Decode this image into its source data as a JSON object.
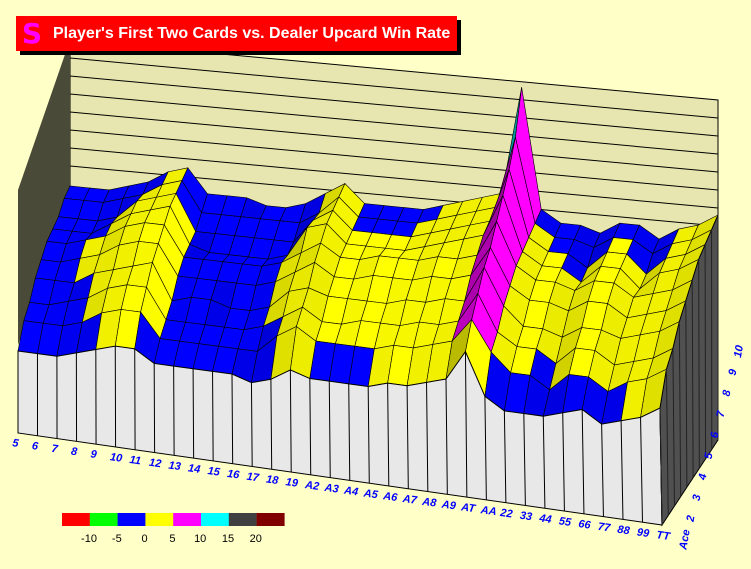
{
  "title": "Player's First Two Cards vs. Dealer Upcard Win Rate",
  "chart_data": {
    "type": "surface3d",
    "title": "Player's First Two Cards vs. Dealer Upcard Win Rate",
    "x_categories": [
      "5",
      "6",
      "7",
      "8",
      "9",
      "10",
      "11",
      "12",
      "13",
      "14",
      "15",
      "16",
      "17",
      "18",
      "19",
      "A2",
      "A3",
      "A4",
      "A5",
      "A6",
      "A7",
      "A8",
      "A9",
      "AT",
      "AA",
      "22",
      "33",
      "44",
      "55",
      "66",
      "77",
      "88",
      "99",
      "TT"
    ],
    "y_categories": [
      "Ace",
      "2",
      "3",
      "4",
      "5",
      "6",
      "7",
      "8",
      "9",
      "10"
    ],
    "z_values": [
      [
        -4,
        -2,
        -2,
        -1,
        -1,
        -1,
        -2,
        -3,
        -3,
        -4
      ],
      [
        -4,
        -2,
        -2,
        -1,
        -1,
        -1,
        -2,
        -3,
        -3,
        -4
      ],
      [
        -4,
        -2,
        -1,
        -1,
        0,
        0,
        -2,
        -3,
        -3,
        -4
      ],
      [
        -3,
        -1,
        0,
        1,
        1,
        1,
        0,
        -2,
        -2,
        -3
      ],
      [
        -2,
        1,
        2,
        2,
        3,
        3,
        2,
        1,
        -1,
        -2
      ],
      [
        -1,
        2,
        3,
        3,
        4,
        4,
        3,
        2,
        1,
        0
      ],
      [
        -1,
        2,
        3,
        4,
        4,
        4,
        4,
        3,
        2,
        1
      ],
      [
        -3,
        -2,
        -2,
        -2,
        -1,
        -1,
        -2,
        -3,
        -3,
        -3
      ],
      [
        -3,
        -2,
        -2,
        -1,
        -1,
        -1,
        -3,
        -3,
        -3,
        -3
      ],
      [
        -3,
        -2,
        -2,
        -1,
        -1,
        -1,
        -3,
        -3,
        -3,
        -3
      ],
      [
        -3,
        -2,
        -2,
        -2,
        -1,
        -1,
        -3,
        -3,
        -3,
        -4
      ],
      [
        -3,
        -2,
        -2,
        -2,
        -1,
        -1,
        -3,
        -3,
        -3,
        -4
      ],
      [
        -4,
        -2,
        -1,
        -1,
        0,
        0,
        -2,
        -3,
        -3,
        -3
      ],
      [
        -3,
        1,
        1,
        2,
        2,
        2,
        3,
        1,
        -1,
        -1
      ],
      [
        -1,
        3,
        3,
        3,
        4,
        4,
        4,
        3,
        2,
        1
      ],
      [
        -2,
        1,
        1,
        2,
        2,
        2,
        1,
        0,
        -1,
        -2
      ],
      [
        -2,
        1,
        1,
        2,
        2,
        2,
        1,
        0,
        -1,
        -2
      ],
      [
        -2,
        1,
        2,
        2,
        3,
        3,
        1,
        0,
        -1,
        -2
      ],
      [
        -2,
        1,
        2,
        2,
        3,
        3,
        1,
        0,
        -1,
        -2
      ],
      [
        -1,
        2,
        2,
        3,
        3,
        3,
        2,
        1,
        0,
        -1
      ],
      [
        -1,
        2,
        3,
        3,
        4,
        4,
        3,
        2,
        1,
        0
      ],
      [
        0,
        3,
        3,
        4,
        4,
        4,
        4,
        3,
        2,
        1
      ],
      [
        1,
        4,
        4,
        4,
        5,
        5,
        5,
        4,
        3,
        2
      ],
      [
        6,
        8,
        9,
        10,
        10,
        11,
        12,
        13,
        15,
        20
      ],
      [
        -1,
        3,
        3,
        4,
        4,
        4,
        3,
        2,
        1,
        0
      ],
      [
        -3,
        0,
        1,
        1,
        2,
        2,
        1,
        0,
        -1,
        -2
      ],
      [
        -3,
        0,
        1,
        1,
        2,
        2,
        1,
        0,
        -1,
        -2
      ],
      [
        -3,
        -2,
        -1,
        0,
        1,
        1,
        -1,
        -2,
        -2,
        -3
      ],
      [
        -2,
        1,
        2,
        2,
        3,
        3,
        2,
        1,
        0,
        -1
      ],
      [
        -1,
        1,
        2,
        2,
        3,
        3,
        2,
        1,
        0,
        -1
      ],
      [
        -3,
        -1,
        0,
        1,
        1,
        1,
        -1,
        -2,
        -2,
        -3
      ],
      [
        -2,
        1,
        1,
        2,
        2,
        2,
        2,
        1,
        0,
        -1
      ],
      [
        -1,
        2,
        2,
        3,
        3,
        3,
        3,
        2,
        1,
        0
      ],
      [
        1,
        4,
        4,
        5,
        5,
        5,
        5,
        4,
        3,
        2
      ]
    ],
    "legend": {
      "placement": "bottom-left",
      "colors": [
        "#ff0000",
        "#00ff00",
        "#0000ff",
        "#ffff00",
        "#ff00ff",
        "#00ffff",
        "#404040",
        "#800000"
      ],
      "labels": [
        "-10",
        "-5",
        "0",
        "5",
        "10",
        "15",
        "20"
      ],
      "bounds": [
        -15,
        -10,
        -5,
        0,
        5,
        10,
        15,
        20,
        25
      ]
    },
    "colors": {
      "wall_front": "#e8e8e8",
      "wall_right": "#505050",
      "wall_back": "#e8e6b0",
      "wall_left": "#4a4a38",
      "axis_labels": "#0000ff"
    }
  }
}
